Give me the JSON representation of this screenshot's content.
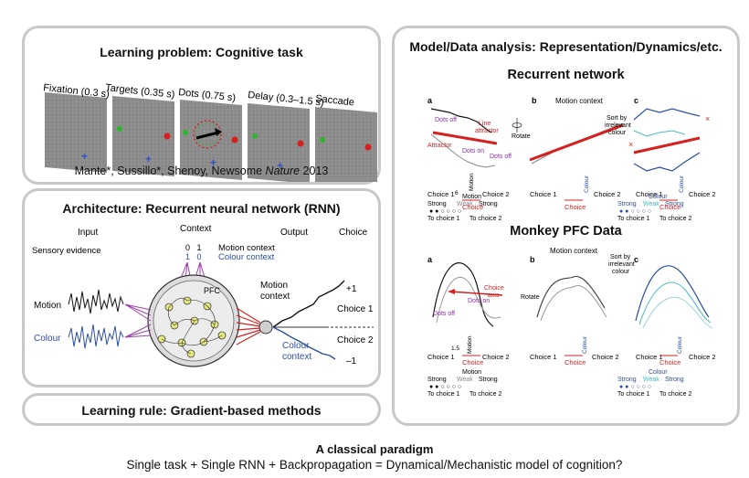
{
  "panels": {
    "task": {
      "title": "Learning problem: Cognitive task",
      "epochs": [
        "Fixation (0.3 s)",
        "Targets (0.35 s)",
        "Dots (0.75 s)",
        "Delay (0.3–1.5 s)",
        "Saccade"
      ],
      "citation_prefix": "Mante*, Sussillo*, Shenoy, Newsome ",
      "citation_journal": "Nature",
      "citation_year": " 2013"
    },
    "architecture": {
      "title": "Architecture: Recurrent neural network (RNN)",
      "col_input": "Input",
      "col_context": "Context",
      "col_output": "Output",
      "col_choice": "Choice",
      "sensory_evidence": "Sensory evidence",
      "ctx_values_top": "0   1",
      "ctx_values_bottom": "1   0",
      "motion_context": "Motion context",
      "colour_context": "Colour context",
      "pfc": "PFC",
      "input_motion": "Motion",
      "input_colour": "Colour",
      "out_motion_context_1": "Motion",
      "out_motion_context_2": "context",
      "out_colour_context_1": "Colour",
      "out_colour_context_2": "context",
      "choice_plus": "+1",
      "choice_1": "Choice 1",
      "choice_2": "Choice 2",
      "choice_minus": "–1"
    },
    "learning_rule": {
      "title": "Learning rule: Gradient-based methods"
    },
    "analysis": {
      "title": "Model/Data analysis: Representation/Dynamics/etc.",
      "rnn_heading": "Recurrent network",
      "pfc_heading": "Monkey PFC Data",
      "label_a": "a",
      "label_b": "b",
      "label_c": "c",
      "motion_context": "Motion context",
      "rotate": "Rotate",
      "sort_by": "Sort by",
      "irrelevant": "irrelevant",
      "colour_word": "colour",
      "dots_off": "Dots off",
      "dots_on": "Dots on",
      "attractor": "Attractor",
      "line_attractor_1": "Line",
      "line_attractor_2": "attractor",
      "choice_axis_1": "Choice",
      "choice_axis_2": "axis",
      "choice_1": "Choice 1",
      "choice_2": "Choice 2",
      "choice": "Choice",
      "motion_axis": "Motion",
      "colour_axis": "Colour",
      "scale_6": "6",
      "scale_15": "1.5",
      "legend_motion_title": "Motion",
      "legend_colour_title": "Colour",
      "strong": "Strong",
      "weak": "Weak",
      "to_choice_1": "To choice 1",
      "to_choice_2": "To choice 2"
    }
  },
  "footer": {
    "title": "A classical paradigm",
    "line": "Single task + Single RNN + Backpropagation = Dynamical/Mechanistic model of cognition?"
  },
  "colors": {
    "red": "#d62020",
    "blue": "#2a4ea0",
    "purple": "#8a2aa8",
    "green": "#2db52d",
    "cyan": "#49b8c8"
  }
}
